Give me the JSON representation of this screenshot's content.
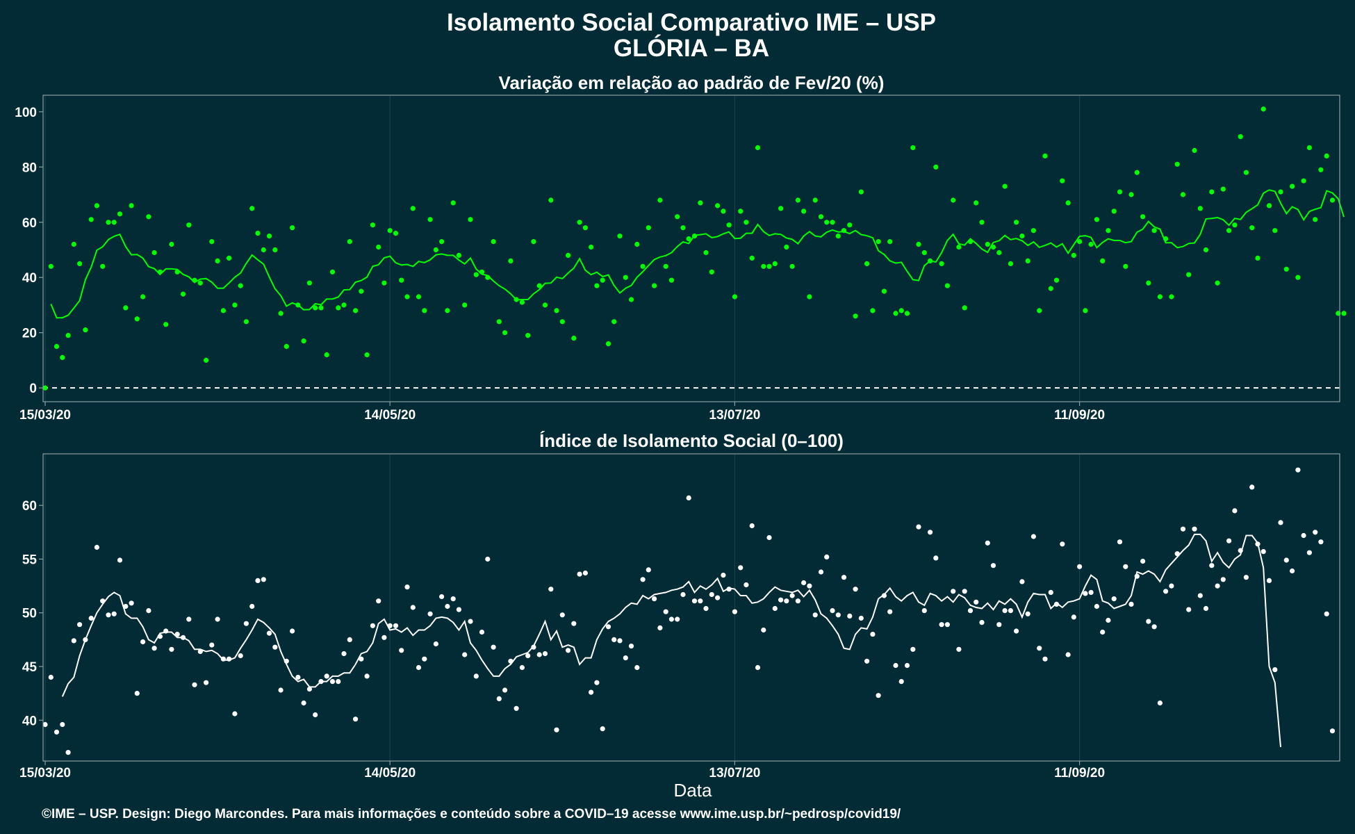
{
  "title_line1": "Isolamento Social Comparativo IME – USP",
  "title_line2": "GLÓRIA – BA",
  "xlabel": "Data",
  "footer": "©IME – USP. Design: Diego Marcondes. Para mais informações e conteúdo sobre a COVID–19 acesse www.ime.usp.br/~pedrosp/covid19/",
  "colors": {
    "background": "#022b35",
    "panel1_series": "#00ff00",
    "panel2_series": "#ffffff",
    "grid": "#1d4550",
    "frame": "#8a9ea3",
    "zero_line": "#ffffff"
  },
  "chart_data": [
    {
      "type": "scatter",
      "title": "Variação em relação ao padrão de Fev/20 (%)",
      "x_start_date": "15/03/20",
      "xtick_labels": [
        "15/03/20",
        "14/05/20",
        "13/07/20",
        "11/09/20"
      ],
      "ytick_labels": [
        "0",
        "20",
        "40",
        "60",
        "80",
        "100"
      ],
      "ylim": [
        -5,
        106
      ],
      "reference_line": 0,
      "grid": true,
      "series": [
        {
          "kind": "daily_points",
          "values": [
            0,
            44,
            15,
            11,
            19,
            52,
            45,
            21,
            61,
            66,
            44,
            60,
            60,
            63,
            29,
            66,
            25,
            33,
            62,
            49,
            42,
            23,
            52,
            42,
            34,
            59,
            39,
            38,
            10,
            53,
            46,
            28,
            47,
            30,
            37,
            24,
            65,
            56,
            50,
            55,
            50,
            27,
            15,
            58,
            30,
            17,
            38,
            29,
            29,
            12,
            42,
            29,
            30,
            53,
            28,
            35,
            12,
            59,
            51,
            38,
            57,
            56,
            39,
            33,
            65,
            33,
            28,
            61,
            50,
            53,
            28,
            67,
            48,
            30,
            61,
            41,
            42,
            40,
            53,
            24,
            20,
            46,
            32,
            31,
            19,
            53,
            37,
            30,
            68,
            28,
            24,
            48,
            18,
            60,
            58,
            51,
            37,
            39,
            16,
            24,
            55,
            40,
            32,
            52,
            44,
            58,
            37,
            68,
            44,
            39,
            62,
            58,
            54,
            55,
            67,
            49,
            42,
            66,
            64,
            59,
            33,
            64,
            60,
            47,
            87,
            44,
            44,
            45,
            65,
            51,
            44,
            68,
            64,
            33,
            68,
            62,
            60,
            60,
            55,
            57,
            59,
            26,
            71,
            45,
            28,
            53,
            35,
            53,
            27,
            28,
            27,
            87,
            52,
            49,
            46,
            80,
            45,
            37,
            68,
            51,
            29,
            53,
            67,
            60,
            52,
            51,
            49,
            73,
            45,
            60,
            55,
            46,
            57,
            28,
            84,
            36,
            39,
            75,
            67,
            48,
            53,
            28,
            52,
            61,
            46,
            57,
            64,
            71,
            44,
            70,
            78,
            62,
            38,
            57,
            33,
            54,
            33,
            81,
            70,
            41,
            86,
            65,
            50,
            71,
            38,
            72,
            57,
            59,
            91,
            78,
            58,
            47,
            101,
            66,
            57,
            71,
            43,
            73,
            40,
            75,
            87,
            61,
            79,
            84,
            68,
            27,
            27
          ]
        },
        {
          "kind": "moving_average",
          "start_index": 1,
          "values": [
            30.4,
            25.4,
            25.4,
            26.3,
            28.9,
            31.6,
            39.2,
            43.7,
            49.9,
            51.1,
            53.7,
            54.9,
            55.6,
            51.2,
            48.2,
            48.3,
            47.0,
            43.9,
            43.2,
            41.1,
            43.1,
            43.1,
            42.9,
            41.1,
            40.2,
            38.2,
            39.4,
            39.6,
            38.3,
            36.1,
            36.1,
            38.0,
            40.1,
            41.6,
            45.1,
            48.1,
            46.4,
            44.8,
            40.2,
            35.9,
            33.4,
            29.6,
            30.8,
            30.0,
            28.3,
            28.4,
            30.5,
            30.1,
            32.2,
            32.2,
            32.9,
            35.5,
            35.6,
            38.3,
            38.9,
            40.1,
            44.0,
            44.6,
            47.1,
            47.7,
            45.3,
            44.5,
            44.7,
            44.0,
            45.8,
            45.4,
            46.4,
            48.2,
            48.5,
            48.0,
            48.0,
            46.3,
            44.9,
            47.0,
            43.0,
            41.2,
            40.7,
            38.7,
            37.0,
            35.8,
            34.1,
            31.9,
            32.0,
            32.0,
            34.1,
            35.6,
            37.9,
            38.0,
            40.1,
            39.6,
            41.6,
            43.4,
            46.8,
            42.6,
            41.0,
            41.9,
            40.3,
            40.9,
            37.1,
            34.4,
            36.1,
            37.1,
            40.1,
            42.1,
            44.3,
            46.5,
            47.4,
            47.9,
            49.0,
            51.2,
            52.9,
            52.3,
            55.2,
            55.5,
            55.8,
            54.4,
            54.8,
            55.8,
            56.5,
            54.1,
            54.2,
            56.0,
            56.0,
            59.2,
            56.6,
            55.2,
            55.8,
            55.6,
            54.3,
            53.8,
            52.2,
            55.0,
            56.6,
            55.0,
            54.7,
            56.4,
            57.2,
            56.5,
            56.6,
            55.9,
            57.0,
            55.5,
            55.1,
            54.4,
            49.7,
            48.3,
            46.0,
            45.2,
            45.5,
            42.2,
            39.2,
            38.9,
            44.3,
            46.0,
            45.6,
            49.0,
            53.4,
            55.6,
            52.2,
            51.7,
            54.0,
            52.3,
            50.3,
            49.1,
            52.7,
            53.3,
            55.2,
            53.7,
            54.1,
            53.3,
            51.6,
            52.9,
            50.9,
            51.6,
            52.5,
            51.0,
            52.2,
            48.8,
            51.9,
            54.9,
            55.1,
            54.5,
            50.8,
            52.7,
            54.0,
            53.4,
            53.4,
            52.6,
            53.0,
            56.4,
            57.5,
            60.3,
            58.3,
            57.5,
            52.6,
            52.6,
            50.8,
            51.2,
            52.3,
            52.5,
            55.6,
            61.2,
            61.4,
            61.7,
            60.9,
            58.9,
            61.4,
            61.0,
            63.6,
            64.9,
            66.3,
            70.5,
            71.7,
            71.2,
            66.9,
            63.1,
            65.6,
            64.6,
            60.9,
            63.9,
            64.7,
            65.3,
            71.4,
            70.6,
            68.5,
            61.9
          ]
        }
      ]
    },
    {
      "type": "scatter",
      "title": "Índice de Isolamento Social (0–100)",
      "x_start_date": "15/03/20",
      "xtick_labels": [
        "15/03/20",
        "14/05/20",
        "13/07/20",
        "11/09/20"
      ],
      "ytick_labels": [
        "40",
        "45",
        "50",
        "55",
        "60"
      ],
      "ylim": [
        36.2,
        64.8
      ],
      "grid": true,
      "series": [
        {
          "kind": "daily_points",
          "values": [
            39.6,
            44.0,
            38.9,
            39.6,
            37.0,
            47.4,
            48.9,
            47.5,
            49.5,
            56.1,
            51.1,
            49.8,
            49.9,
            54.9,
            50.6,
            50.9,
            42.5,
            47.3,
            50.2,
            46.7,
            47.8,
            48.3,
            46.6,
            48.0,
            47.7,
            49.4,
            43.3,
            46.4,
            43.5,
            47.0,
            49.4,
            45.7,
            45.7,
            40.6,
            46.0,
            49.0,
            50.6,
            53.0,
            53.1,
            48.1,
            46.8,
            42.8,
            45.5,
            48.3,
            44.0,
            41.6,
            42.9,
            40.5,
            43.6,
            44.1,
            43.6,
            43.6,
            46.2,
            47.5,
            40.1,
            45.7,
            44.1,
            48.8,
            51.1,
            47.7,
            48.8,
            48.8,
            46.5,
            52.4,
            50.5,
            44.9,
            45.7,
            49.9,
            47.1,
            51.5,
            50.6,
            51.3,
            50.3,
            46.1,
            49.2,
            44.1,
            48.2,
            55.0,
            46.8,
            42.0,
            42.8,
            45.5,
            41.1,
            44.9,
            46.0,
            46.8,
            46.1,
            46.2,
            52.2,
            39.1,
            49.8,
            46.5,
            49.0,
            53.6,
            53.7,
            42.6,
            43.5,
            39.2,
            48.7,
            47.5,
            47.4,
            45.8,
            46.9,
            44.9,
            53.1,
            54.0,
            51.3,
            48.6,
            50.1,
            49.4,
            49.4,
            51.7,
            60.7,
            51.1,
            51.1,
            50.4,
            51.7,
            51.4,
            53.5,
            52.2,
            50.1,
            54.2,
            52.6,
            58.1,
            44.9,
            48.4,
            57.0,
            50.4,
            51.2,
            51.1,
            51.6,
            51.1,
            52.8,
            52.5,
            49.8,
            53.8,
            55.2,
            50.2,
            49.8,
            53.3,
            49.7,
            52.2,
            49.5,
            45.5,
            48.0,
            42.3,
            51.6,
            50.1,
            45.1,
            43.6,
            45.1,
            46.6,
            58.0,
            50.2,
            57.5,
            55.1,
            48.9,
            48.9,
            52.0,
            46.6,
            52.0,
            50.2,
            51.0,
            49.1,
            56.5,
            54.4,
            48.9,
            50.2,
            50.2,
            48.3,
            52.9,
            49.9,
            57.1,
            46.7,
            45.7,
            51.9,
            50.8,
            56.4,
            46.1,
            49.6,
            54.3,
            51.8,
            51.9,
            50.6,
            48.2,
            49.3,
            51.3,
            56.6,
            54.3,
            50.8,
            53.4,
            54.8,
            49.2,
            48.7,
            41.6,
            52.0,
            52.5,
            55.5,
            57.8,
            50.3,
            57.8,
            51.6,
            50.4,
            54.4,
            52.5,
            53.1,
            56.7,
            59.5,
            55.8,
            53.3,
            61.7,
            56.4,
            55.7,
            53.0,
            44.7,
            58.4,
            54.9,
            53.9,
            63.3,
            57.2,
            55.6,
            57.5,
            56.6,
            49.9,
            39.0
          ]
        },
        {
          "kind": "moving_average",
          "start_index": 3,
          "values": [
            42.2,
            43.4,
            44.0,
            46.0,
            47.5,
            48.8,
            50.0,
            50.8,
            51.5,
            51.9,
            51.6,
            49.9,
            49.5,
            49.5,
            48.7,
            47.5,
            47.2,
            48.1,
            48.2,
            48.2,
            47.7,
            47.7,
            47.4,
            46.6,
            46.6,
            46.4,
            46.5,
            46.2,
            45.6,
            45.6,
            45.8,
            46.7,
            47.5,
            48.4,
            49.4,
            49.1,
            48.6,
            48.0,
            46.4,
            45.2,
            44.1,
            43.6,
            43.8,
            43.1,
            43.1,
            43.6,
            43.6,
            44.1,
            44.1,
            44.4,
            44.4,
            45.2,
            46.2,
            46.4,
            47.2,
            49.0,
            49.4,
            48.4,
            48.5,
            48.2,
            48.6,
            47.9,
            48.4,
            48.4,
            48.8,
            49.5,
            49.6,
            49.5,
            49.1,
            48.4,
            49.2,
            47.2,
            46.5,
            45.6,
            44.8,
            44.1,
            44.1,
            44.8,
            45.2,
            45.9,
            46.1,
            46.3,
            46.9,
            48.0,
            49.2,
            47.5,
            48.3,
            46.8,
            47.0,
            46.8,
            45.2,
            45.8,
            45.8,
            47.5,
            48.5,
            49.2,
            49.5,
            49.9,
            50.5,
            50.9,
            50.8,
            51.6,
            51.3,
            51.7,
            51.8,
            51.9,
            52.1,
            52.2,
            52.4,
            52.9,
            51.9,
            52.5,
            52.2,
            52.6,
            53.2,
            52.0,
            52.3,
            52.2,
            51.6,
            51.6,
            50.9,
            51.0,
            51.3,
            51.9,
            52.4,
            52.1,
            52.0,
            51.9,
            52.1,
            51.5,
            52.1,
            51.2,
            49.9,
            49.5,
            48.8,
            48.0,
            46.7,
            46.6,
            48.0,
            48.6,
            48.5,
            49.6,
            51.3,
            51.7,
            52.3,
            51.5,
            51.1,
            51.6,
            51.9,
            51.0,
            50.7,
            51.8,
            51.6,
            51.1,
            51.5,
            51.0,
            51.7,
            51.4,
            50.7,
            50.5,
            50.4,
            50.9,
            50.3,
            51.1,
            50.8,
            51.3,
            50.8,
            49.6,
            51.0,
            51.8,
            51.7,
            51.7,
            50.4,
            50.9,
            50.5,
            51.0,
            51.1,
            51.3,
            52.5,
            53.5,
            53.1,
            51.1,
            50.9,
            50.4,
            50.6,
            50.8,
            51.6,
            53.8,
            53.6,
            53.9,
            53.6,
            52.9,
            54.0,
            54.6,
            55.2,
            55.8,
            56.3,
            57.3,
            57.3,
            56.7,
            54.8,
            55.6,
            54.7,
            54.2,
            55.0,
            55.4,
            57.2,
            57.2,
            56.5,
            54.2,
            45.0,
            43.5,
            37.5
          ]
        }
      ]
    }
  ]
}
